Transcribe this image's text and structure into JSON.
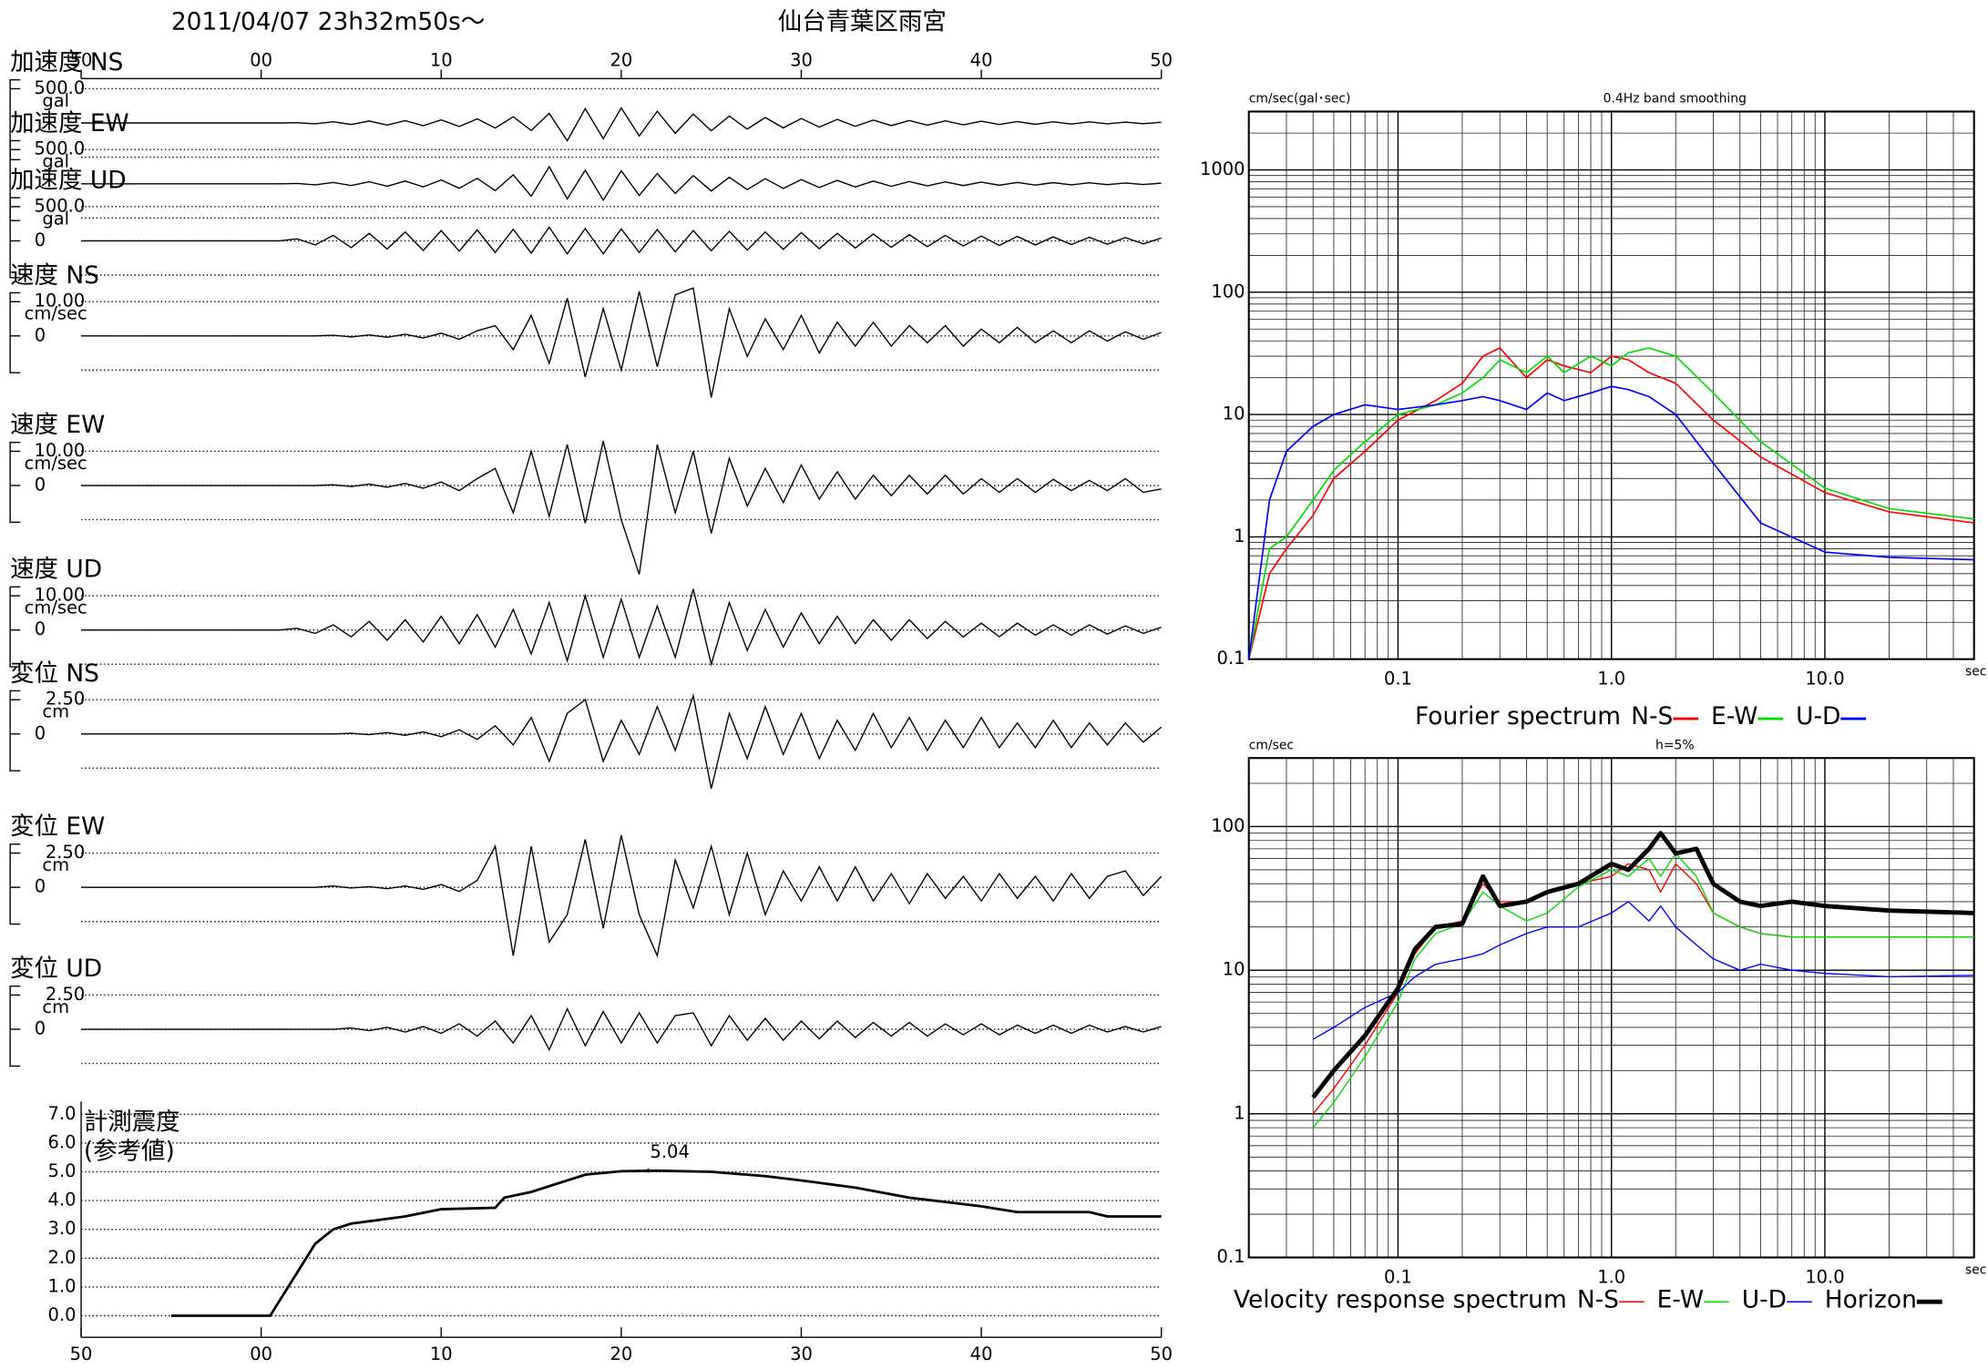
{
  "header": {
    "timestamp": "2011/04/07  23h32m50s〜",
    "station": "仙台青葉区雨宮"
  },
  "chart_data": [
    {
      "type": "waveform",
      "x": [
        -10,
        0,
        1,
        2,
        3,
        4,
        5,
        6,
        7,
        8,
        9,
        10,
        11,
        12,
        13,
        14,
        15,
        16,
        17,
        18,
        19,
        20,
        21,
        22,
        23,
        24,
        25,
        26,
        27,
        28,
        29,
        30,
        31,
        32,
        33,
        34,
        35,
        36,
        37,
        38,
        39,
        40,
        41,
        42,
        43,
        44,
        45,
        46,
        47,
        48,
        49,
        50
      ],
      "xlim": [
        -10,
        50
      ],
      "xticks": [
        {
          "value": -10,
          "label": "50"
        },
        {
          "value": 0,
          "label": "00"
        },
        10,
        20,
        30,
        40,
        50
      ],
      "panels": [
        {
          "title": "加速度 NS",
          "unit": "gal",
          "ylim": [
            -500,
            500
          ],
          "yticks": [
            {
              "value": 500,
              "label": "500.0"
            }
          ],
          "color": "#000000",
          "values": [
            0,
            0,
            0,
            4,
            -12,
            18,
            -22,
            28,
            -30,
            34,
            -40,
            45,
            -52,
            60,
            -75,
            90,
            -110,
            140,
            -260,
            210,
            -230,
            220,
            -190,
            170,
            -150,
            130,
            -115,
            100,
            -90,
            80,
            -72,
            65,
            -60,
            52,
            -48,
            42,
            -38,
            35,
            -32,
            30,
            -28,
            25,
            -22,
            20,
            -20,
            18,
            -16,
            15,
            -13,
            12,
            -11,
            10
          ]
        },
        {
          "title": "加速度 EW",
          "unit": "gal",
          "ylim": [
            -500,
            500
          ],
          "yticks": [
            {
              "value": 500,
              "label": "500.0"
            }
          ],
          "color": "#000000",
          "values": [
            0,
            0,
            0,
            5,
            -15,
            20,
            -25,
            30,
            -35,
            40,
            -45,
            55,
            -65,
            80,
            -100,
            130,
            -180,
            250,
            -220,
            200,
            -240,
            190,
            -170,
            150,
            -140,
            120,
            -105,
            95,
            -85,
            75,
            -68,
            62,
            -55,
            50,
            -46,
            40,
            -36,
            33,
            -30,
            28,
            -26,
            24,
            -21,
            20,
            -18,
            17,
            -15,
            14,
            -12,
            11,
            -10,
            9
          ]
        },
        {
          "title": "加速度 UD",
          "unit": "gal",
          "ylim": [
            -500,
            500
          ],
          "yticks": [
            {
              "value": 500,
              "label": "500.0"
            },
            0
          ],
          "color": "#000000",
          "values": [
            0,
            0,
            0,
            30,
            -60,
            80,
            -100,
            110,
            -120,
            130,
            -140,
            150,
            -150,
            160,
            -170,
            170,
            -180,
            200,
            -190,
            180,
            -190,
            175,
            -170,
            165,
            -160,
            150,
            -145,
            140,
            -135,
            130,
            -125,
            120,
            -115,
            110,
            -105,
            100,
            -95,
            90,
            -85,
            80,
            -75,
            70,
            -68,
            65,
            -60,
            58,
            -55,
            52,
            -50,
            48,
            -45,
            42
          ]
        },
        {
          "title": "速度 NS",
          "unit": "cm/sec",
          "ylim": [
            -10,
            10
          ],
          "yticks": [
            {
              "value": 10,
              "label": "10.00"
            },
            0
          ],
          "color": "#000000",
          "values": [
            0,
            0,
            0,
            0,
            0,
            0.2,
            -0.3,
            0.3,
            -0.4,
            0.5,
            -0.6,
            0.8,
            -1,
            1.5,
            3,
            -4,
            6,
            -8,
            11,
            -12,
            8,
            -10,
            13,
            -9,
            12,
            14,
            -18,
            8,
            -6,
            5,
            -4,
            6,
            -5,
            4,
            -3,
            4,
            -3,
            3,
            -2,
            3,
            -3,
            2,
            -2,
            2.5,
            -2,
            1.5,
            -2,
            1.5,
            -1.5,
            1.2,
            -1,
            1
          ]
        },
        {
          "title": "速度 EW",
          "unit": "cm/sec",
          "ylim": [
            -10,
            10
          ],
          "yticks": [
            {
              "value": 10,
              "label": "10.00"
            },
            0
          ],
          "color": "#000000",
          "values": [
            0,
            0,
            0,
            0,
            0,
            0.2,
            -0.3,
            0.4,
            -0.5,
            0.6,
            -0.8,
            1,
            -1.5,
            2,
            5,
            -8,
            10,
            -9,
            12,
            -11,
            13,
            -10,
            -26,
            12,
            -8,
            10,
            -14,
            8,
            -6,
            5,
            -5,
            6,
            -4,
            4,
            -4,
            3,
            -3,
            3,
            -2.5,
            3,
            -2.5,
            2,
            -2,
            2,
            -2,
            1.8,
            -1.5,
            1.5,
            -1.5,
            2,
            -2,
            -1
          ]
        },
        {
          "title": "速度 UD",
          "unit": "cm/sec",
          "ylim": [
            -10,
            10
          ],
          "yticks": [
            {
              "value": 10,
              "label": "10.00"
            },
            0
          ],
          "color": "#000000",
          "values": [
            0,
            0,
            0,
            0.5,
            -1,
            1.5,
            -2,
            2.5,
            -3,
            3,
            -3.5,
            4,
            -4,
            4.5,
            -5,
            6,
            -7,
            8,
            -9,
            10,
            -8,
            9,
            -8,
            7,
            -8,
            12,
            -10,
            8,
            -6,
            6,
            -5,
            5,
            -4,
            4,
            -4,
            3,
            -3,
            3,
            -2.5,
            2.5,
            -2,
            2,
            -2,
            2,
            -1.5,
            1.5,
            -1.5,
            1.5,
            -1.2,
            1.2,
            -1,
            0.8
          ]
        },
        {
          "title": "変位 NS",
          "unit": "cm",
          "ylim": [
            -2.5,
            2.5
          ],
          "yticks": [
            {
              "value": 2.5,
              "label": "2.50"
            },
            0
          ],
          "color": "#000000",
          "values": [
            0,
            0,
            0,
            0,
            0,
            0,
            0.05,
            -0.05,
            0.1,
            -0.1,
            0.15,
            -0.2,
            0.3,
            -0.4,
            0.6,
            -0.8,
            1.2,
            -2,
            1.5,
            2.5,
            -2,
            1,
            -1.5,
            2,
            -1.2,
            2.8,
            -4,
            1.5,
            -1.8,
            2,
            -1.5,
            1.5,
            -1.8,
            1,
            -1.2,
            1.5,
            -1,
            1.2,
            -1.2,
            1,
            -1,
            1.2,
            -1,
            0.8,
            -1,
            1,
            -1,
            0.8,
            -0.8,
            0.8,
            -0.6,
            0.5
          ]
        },
        {
          "title": "変位 EW",
          "unit": "cm",
          "ylim": [
            -2.5,
            2.5
          ],
          "yticks": [
            {
              "value": 2.5,
              "label": "2.50"
            },
            0
          ],
          "color": "#000000",
          "values": [
            0,
            0,
            0,
            0,
            0,
            0.1,
            -0.05,
            0.05,
            -0.1,
            0.1,
            -0.15,
            0.2,
            -0.3,
            0.5,
            3,
            -5,
            3,
            -4,
            -2,
            3.5,
            -3,
            3.8,
            -2,
            -5,
            2,
            -1.5,
            3,
            -2,
            2.5,
            -2,
            1.2,
            -1,
            1.5,
            -1,
            1.5,
            -1,
            1,
            -1.2,
            1,
            -0.8,
            0.8,
            -1,
            1,
            -0.8,
            0.8,
            -1,
            1,
            -0.8,
            0.8,
            1.2,
            -0.6,
            0.8
          ]
        },
        {
          "title": "変位 UD",
          "unit": "cm",
          "ylim": [
            -2.5,
            2.5
          ],
          "yticks": [
            {
              "value": 2.5,
              "label": "2.50"
            },
            0
          ],
          "color": "#000000",
          "values": [
            0,
            0,
            0,
            0,
            0,
            0,
            0.1,
            -0.1,
            0.15,
            -0.2,
            0.2,
            -0.3,
            0.4,
            -0.5,
            0.6,
            -1,
            1,
            -1.5,
            1.5,
            -1.2,
            1.3,
            -1,
            1.2,
            -1,
            1,
            1.2,
            -1.2,
            1,
            -0.8,
            0.8,
            -0.8,
            0.6,
            -0.7,
            0.6,
            -0.6,
            0.5,
            -0.5,
            0.5,
            -0.5,
            0.4,
            -0.4,
            0.4,
            -0.4,
            0.3,
            -0.3,
            0.3,
            -0.3,
            0.3,
            -0.2,
            0.2,
            -0.2,
            0.2
          ]
        }
      ]
    },
    {
      "type": "line",
      "title": "計測震度",
      "subtitle": "(参考値)",
      "x": [
        -5,
        0,
        0.5,
        1,
        2,
        3,
        4,
        5,
        8,
        10,
        13,
        13.5,
        15,
        18,
        20,
        22,
        25,
        28,
        30,
        33,
        36,
        38,
        40,
        42,
        44,
        46,
        47,
        50
      ],
      "values": [
        0,
        0,
        0,
        0.5,
        1.5,
        2.5,
        3.0,
        3.2,
        3.45,
        3.7,
        3.75,
        4.1,
        4.3,
        4.9,
        5.02,
        5.04,
        5.0,
        4.85,
        4.7,
        4.45,
        4.1,
        3.95,
        3.8,
        3.6,
        3.6,
        3.6,
        3.45,
        3.45
      ],
      "color": "#000000",
      "xlim": [
        -10,
        50
      ],
      "xticks": [
        {
          "value": -10,
          "label": "50"
        },
        {
          "value": 0,
          "label": "00"
        },
        10,
        20,
        30,
        40,
        50
      ],
      "ylim": [
        -0.75,
        7
      ],
      "yticks": [
        {
          "value": 0,
          "label": "0.0"
        },
        {
          "value": 1,
          "label": "1.0"
        },
        {
          "value": 2,
          "label": "2.0"
        },
        {
          "value": 3,
          "label": "3.0"
        },
        {
          "value": 4,
          "label": "4.0"
        },
        {
          "value": 5,
          "label": "5.0"
        },
        {
          "value": 6,
          "label": "6.0"
        },
        {
          "value": 7,
          "label": "7.0"
        }
      ],
      "peak": {
        "x": 21.5,
        "value": 5.04
      }
    },
    {
      "type": "logline",
      "y_label": "cm/sec(gal･sec)",
      "subtitle": "0.4Hz band smoothing",
      "legend_title": "Fourier spectrum",
      "x_unit": "sec",
      "log_x": true,
      "log_y": true,
      "minor_grid": true,
      "x": [
        0.02,
        0.025,
        0.03,
        0.04,
        0.05,
        0.07,
        0.1,
        0.15,
        0.2,
        0.25,
        0.3,
        0.4,
        0.5,
        0.6,
        0.8,
        1,
        1.2,
        1.5,
        2,
        3,
        5,
        10,
        20,
        50
      ],
      "xlim": [
        0.02,
        50
      ],
      "ylim": [
        0.1,
        3000
      ],
      "xticks": [
        0.1,
        {
          "value": 1,
          "label": "1.0"
        },
        {
          "value": 10,
          "label": "10.0"
        }
      ],
      "yticks": [
        0.1,
        1,
        10,
        100,
        1000
      ],
      "series": [
        {
          "name": "N-S",
          "color": "#ff0000",
          "values": [
            0.1,
            0.5,
            0.8,
            1.5,
            3,
            5,
            9,
            13,
            18,
            30,
            35,
            20,
            28,
            25,
            22,
            30,
            28,
            22,
            18,
            9,
            4.5,
            2.3,
            1.6,
            1.3
          ]
        },
        {
          "name": "E-W",
          "color": "#00dd00",
          "values": [
            0.1,
            0.8,
            1,
            2,
            3.5,
            6,
            10,
            12,
            15,
            20,
            28,
            22,
            30,
            22,
            30,
            25,
            32,
            35,
            30,
            15,
            6,
            2.5,
            1.7,
            1.4
          ]
        },
        {
          "name": "U-D",
          "color": "#0000ff",
          "values": [
            0.1,
            2,
            5,
            8,
            10,
            12,
            11,
            12,
            13,
            14,
            13,
            11,
            15,
            13,
            15,
            17,
            16,
            14,
            10,
            4,
            1.3,
            0.75,
            0.68,
            0.65
          ]
        }
      ]
    },
    {
      "type": "logline",
      "y_label": "cm/sec",
      "subtitle": "h=5%",
      "legend_title": "Velocity response spectrum",
      "x_unit": "sec",
      "log_x": true,
      "log_y": true,
      "minor_grid": true,
      "x": [
        0.04,
        0.05,
        0.07,
        0.1,
        0.12,
        0.15,
        0.2,
        0.25,
        0.3,
        0.4,
        0.5,
        0.7,
        1,
        1.2,
        1.5,
        1.7,
        2,
        2.5,
        3,
        4,
        5,
        7,
        10,
        20,
        50
      ],
      "xlim": [
        0.02,
        50
      ],
      "ylim": [
        0.1,
        300
      ],
      "xticks": [
        0.1,
        {
          "value": 1,
          "label": "1.0"
        },
        {
          "value": 10,
          "label": "10.0"
        }
      ],
      "yticks": [
        0.1,
        1,
        10,
        100
      ],
      "series": [
        {
          "name": "N-S",
          "color": "#ff0000",
          "line_width": 1,
          "values": [
            1,
            1.5,
            3,
            7,
            13,
            20,
            22,
            40,
            30,
            30,
            35,
            40,
            45,
            55,
            50,
            35,
            55,
            40,
            25,
            20,
            18,
            17,
            17,
            17,
            17
          ]
        },
        {
          "name": "E-W",
          "color": "#00dd00",
          "line_width": 1,
          "values": [
            0.8,
            1.2,
            2.5,
            6,
            12,
            18,
            21,
            35,
            28,
            22,
            25,
            38,
            50,
            45,
            60,
            45,
            65,
            45,
            25,
            20,
            18,
            17,
            17,
            17,
            17
          ]
        },
        {
          "name": "U-D",
          "color": "#0000ff",
          "line_width": 1,
          "values": [
            3.3,
            4,
            5.5,
            7,
            9,
            11,
            12,
            13,
            15,
            18,
            20,
            20,
            25,
            30,
            22,
            28,
            20,
            15,
            12,
            10,
            11,
            10,
            9.5,
            9,
            9.2
          ]
        },
        {
          "name": "Horizon",
          "color": "#000000",
          "line_width": 3.5,
          "values": [
            1.3,
            2,
            3.5,
            7.5,
            14,
            20,
            21,
            45,
            28,
            30,
            35,
            40,
            55,
            50,
            70,
            90,
            65,
            70,
            40,
            30,
            28,
            30,
            28,
            26,
            25
          ]
        }
      ]
    }
  ]
}
